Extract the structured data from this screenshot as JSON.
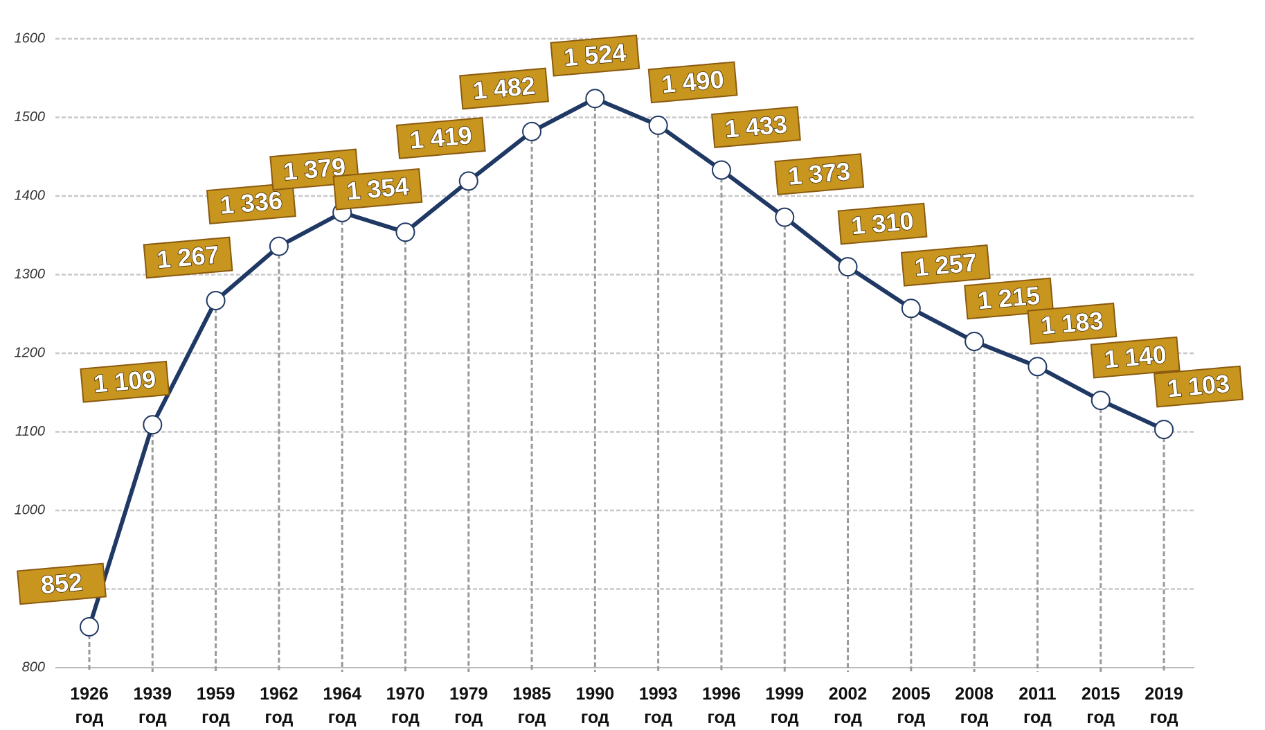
{
  "chart_data": {
    "type": "line",
    "categories": [
      "1926 год",
      "1939 год",
      "1959 год",
      "1962 год",
      "1964 год",
      "1970 год",
      "1979 год",
      "1985 год",
      "1990 год",
      "1993 год",
      "1996 год",
      "1999 год",
      "2002 год",
      "2005 год",
      "2008 год",
      "2011 год",
      "2015 год",
      "2019 год"
    ],
    "series": [
      {
        "color": "#1f3864",
        "values": [
          852,
          1109,
          1267,
          1336,
          1379,
          1354,
          1419,
          1482,
          1524,
          1490,
          1433,
          1373,
          1310,
          1257,
          1215,
          1183,
          1140,
          1103
        ],
        "value_labels": [
          "852",
          "1 109",
          "1 267",
          "1 336",
          "1 379",
          "1 354",
          "1 419",
          "1 482",
          "1 524",
          "1 490",
          "1 433",
          "1 373",
          "1 310",
          "1 257",
          "1 215",
          "1 183",
          "1 140",
          "1 103"
        ]
      }
    ],
    "ylim": [
      800,
      1600
    ],
    "yticks": [
      800,
      900,
      1000,
      1100,
      1200,
      1300,
      1400,
      1500,
      1600
    ],
    "grid": true
  }
}
